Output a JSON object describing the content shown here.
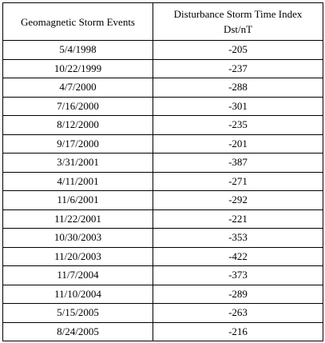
{
  "table": {
    "columns": [
      {
        "lines": [
          "Geomagnetic Storm Events"
        ]
      },
      {
        "lines": [
          "Disturbance Storm Time Index",
          "Dst/nT"
        ]
      }
    ],
    "rows": [
      [
        "5/4/1998",
        -205
      ],
      [
        "10/22/1999",
        -237
      ],
      [
        "4/7/2000",
        -288
      ],
      [
        "7/16/2000",
        -301
      ],
      [
        "8/12/2000",
        -235
      ],
      [
        "9/17/2000",
        -201
      ],
      [
        "3/31/2001",
        -387
      ],
      [
        "4/11/2001",
        -271
      ],
      [
        "11/6/2001",
        -292
      ],
      [
        "11/22/2001",
        -221
      ],
      [
        "10/30/2003",
        -353
      ],
      [
        "11/20/2003",
        -422
      ],
      [
        "11/7/2004",
        -373
      ],
      [
        "11/10/2004",
        -289
      ],
      [
        "5/15/2005",
        -263
      ],
      [
        "8/24/2005",
        -216
      ]
    ]
  }
}
